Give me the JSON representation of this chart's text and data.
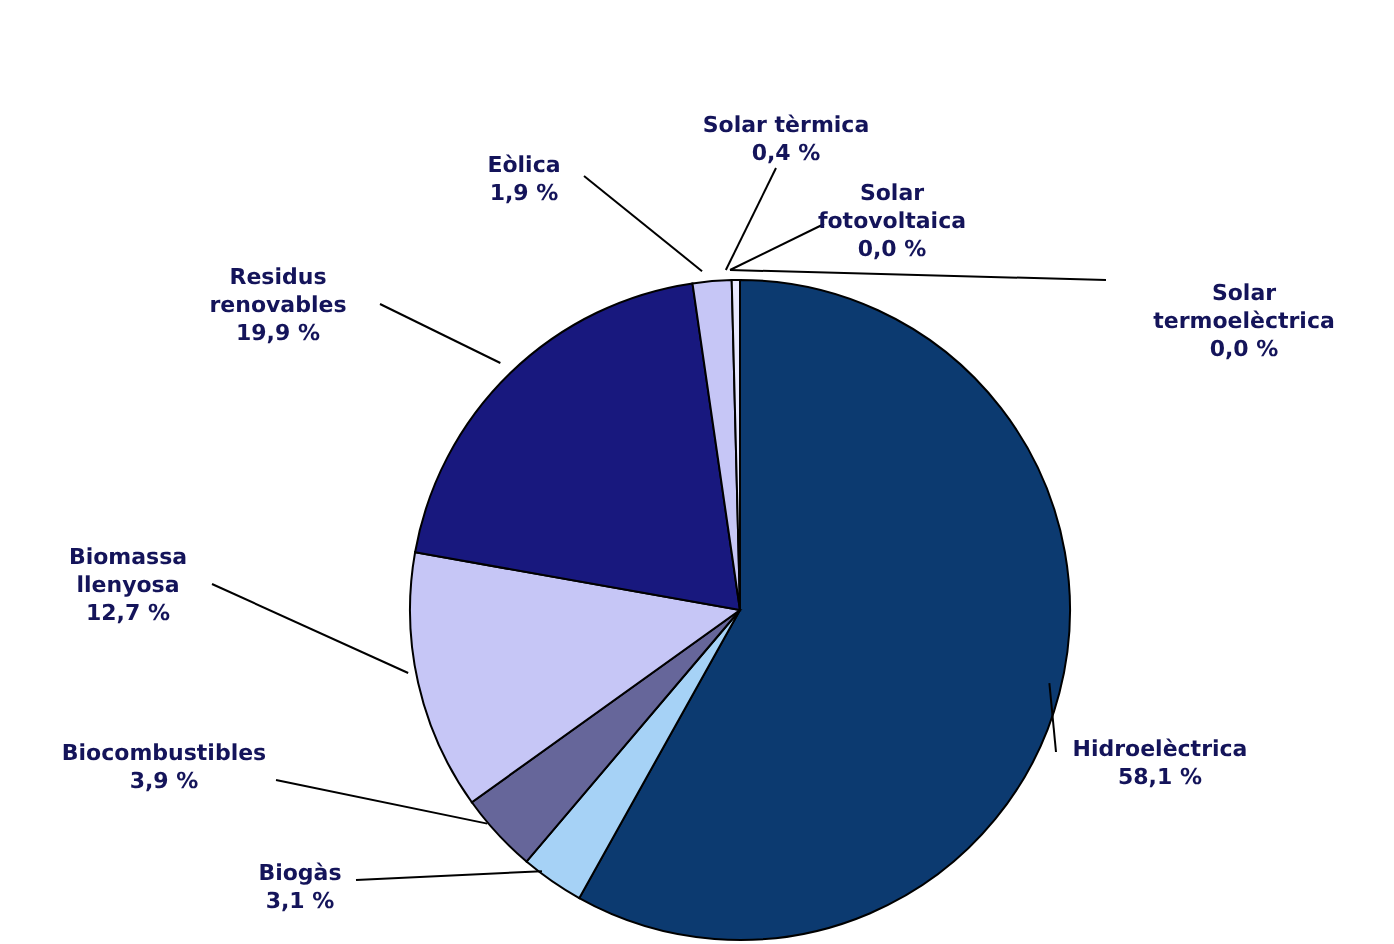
{
  "chart_data": {
    "type": "pie",
    "categories": [
      "Hidroelèctrica",
      "Biogàs",
      "Biocombustibles",
      "Biomassa llenyosa",
      "Residus renovables",
      "Eòlica",
      "Solar tèrmica",
      "Solar fotovoltaica",
      "Solar termoelèctrica"
    ],
    "values": [
      58.1,
      3.1,
      3.9,
      12.7,
      19.9,
      1.9,
      0.4,
      0.0,
      0.0
    ],
    "value_labels": [
      "58,1 %",
      "3,1 %",
      "3,9 %",
      "12,7 %",
      "19,9 %",
      "1,9 %",
      "0,4 %",
      "0,0 %",
      "0,0 %"
    ],
    "colors": [
      "#0c3a70",
      "#a6d2f6",
      "#66669a",
      "#c6c6f6",
      "#18187e",
      "#c6c6f6",
      "#e8e8ff",
      "#0c3a70",
      "#0c3a70"
    ]
  }
}
